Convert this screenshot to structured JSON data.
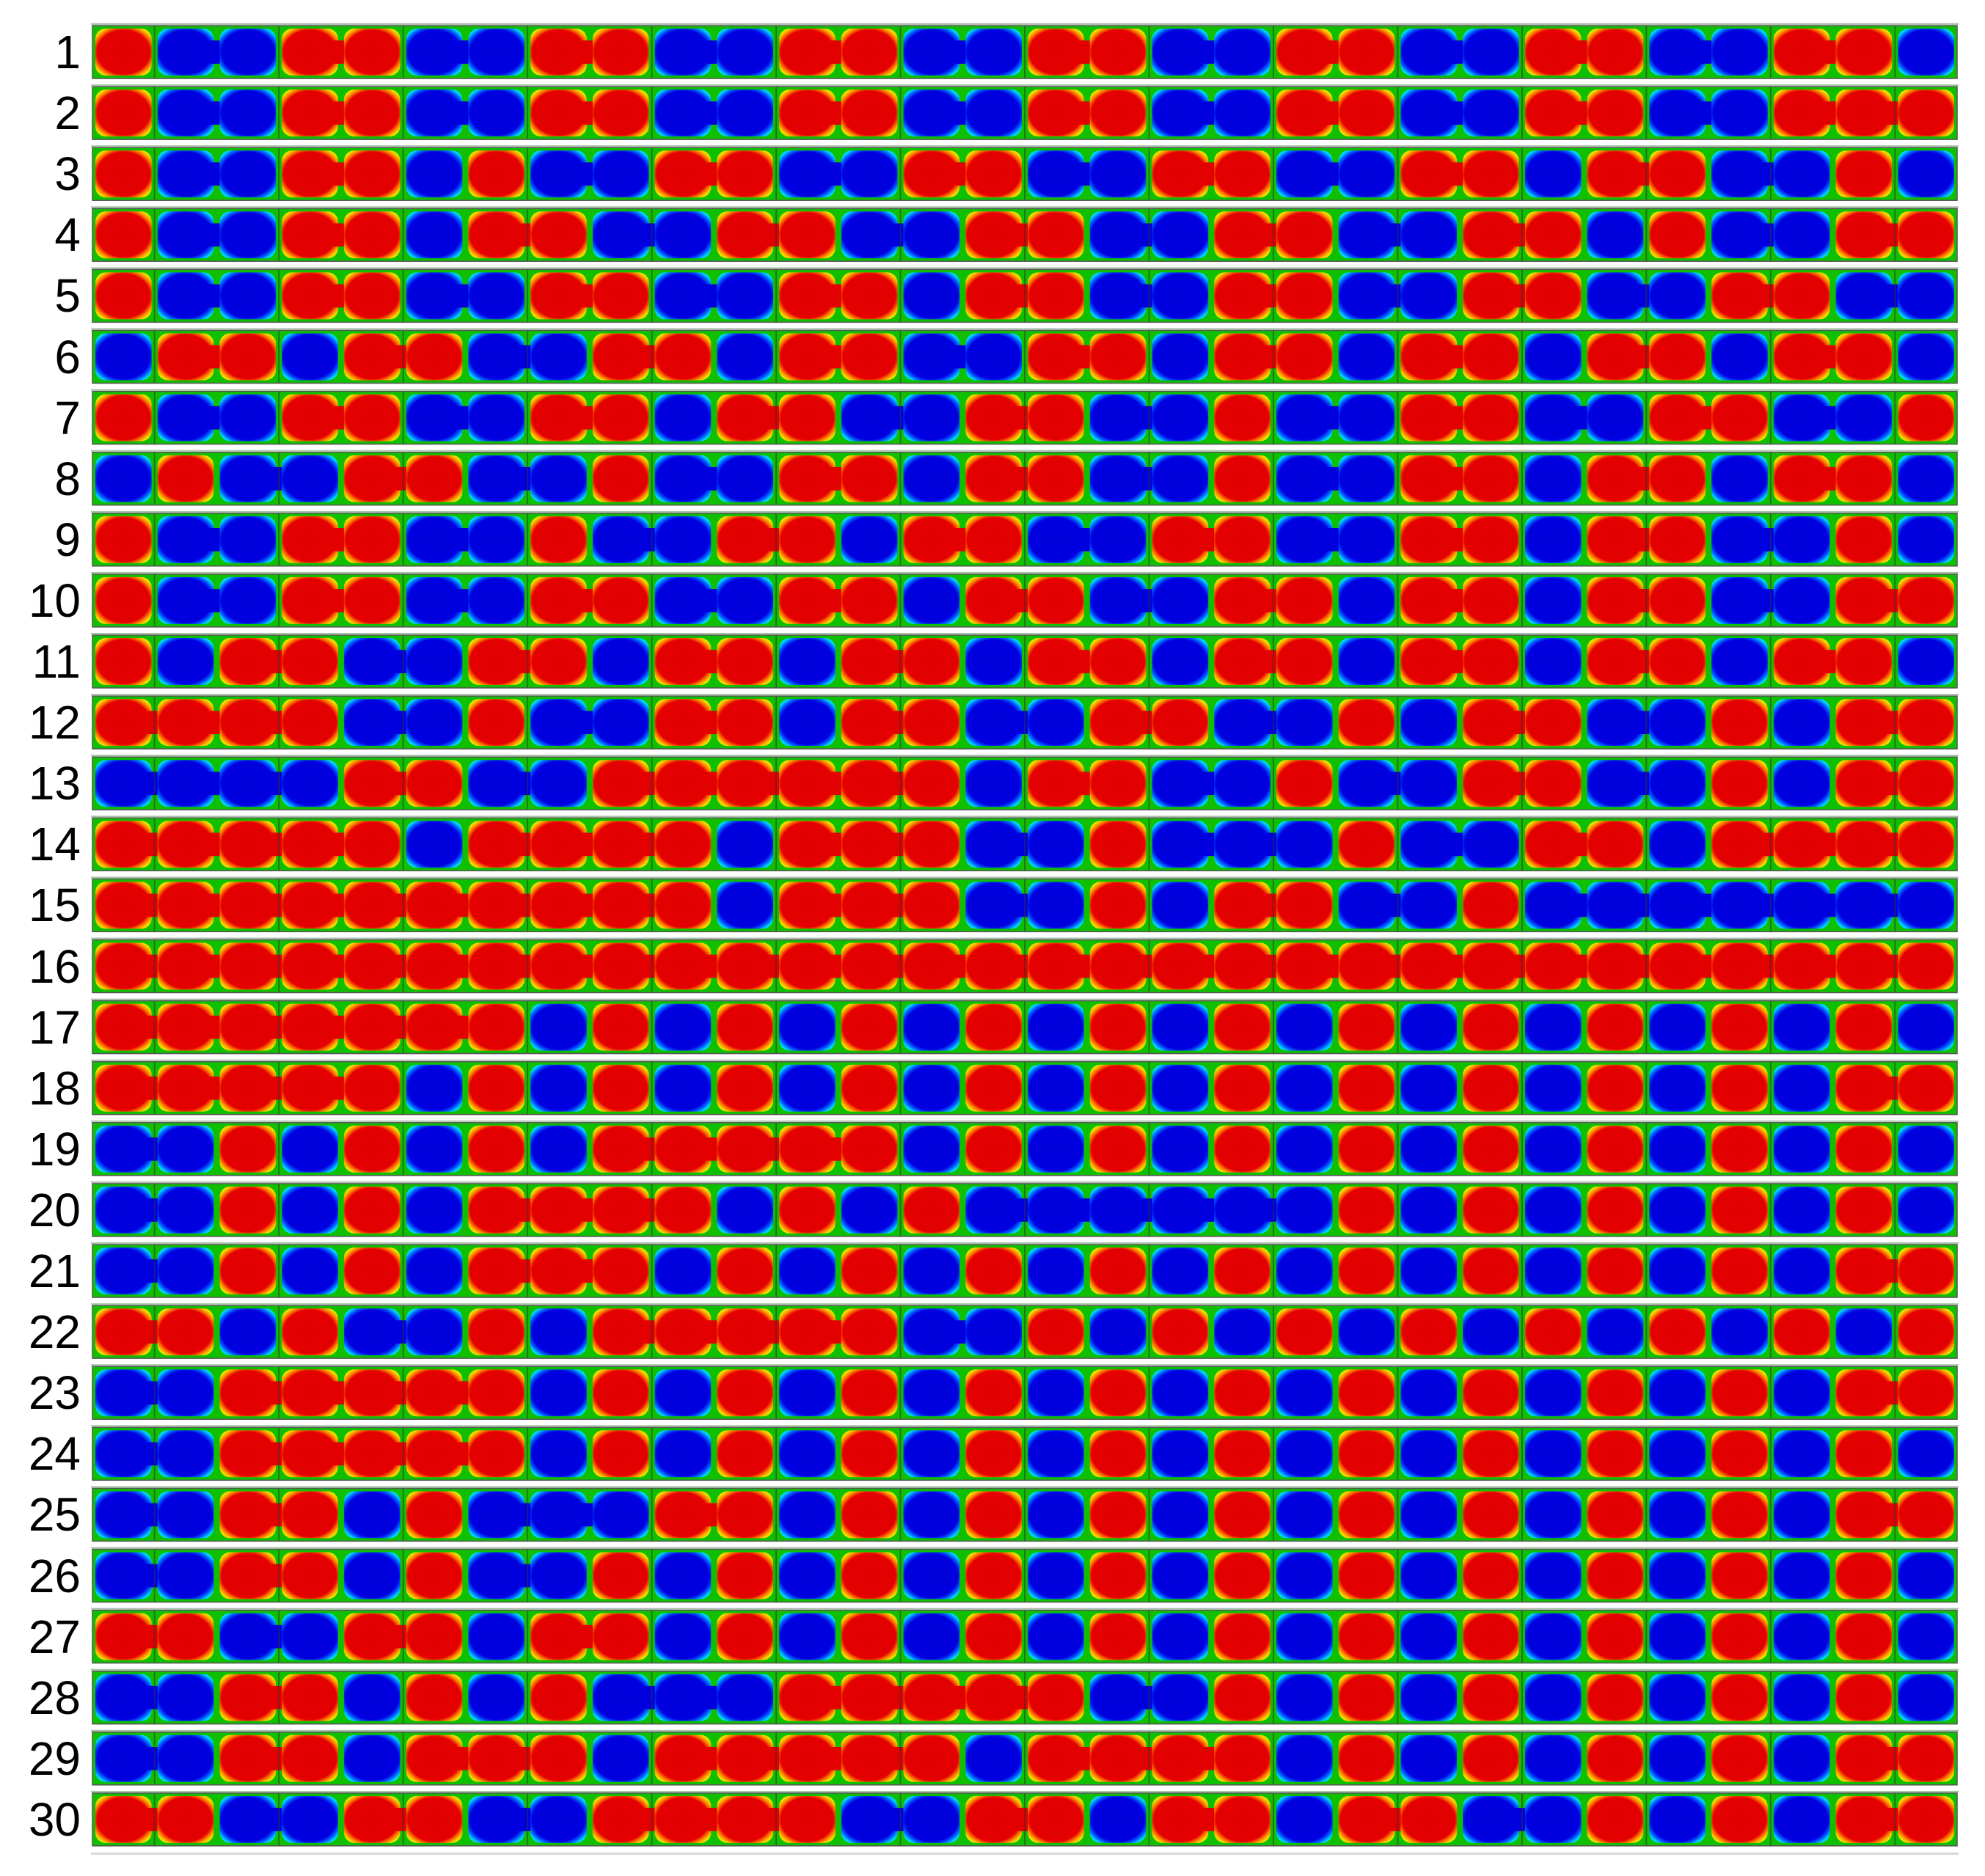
{
  "row_labels": [
    "1",
    "2",
    "3",
    "4",
    "5",
    "6",
    "7",
    "8",
    "9",
    "10",
    "11",
    "12",
    "13",
    "14",
    "15",
    "16",
    "17",
    "18",
    "19",
    "20",
    "21",
    "22",
    "23",
    "24",
    "25",
    "26",
    "27",
    "28",
    "29",
    "30"
  ],
  "palette": {
    "high": "#e00000",
    "low": "#0000e0",
    "mid": "#00e040",
    "cell_border": "#10c000",
    "divider": "#333333",
    "gap": "#f4f4f4",
    "rail": "#a9c0a9"
  },
  "rows": [
    "RBBRRBBRRBBRRBBRRBBRRBBRRBBRRB",
    "RBBRRBBRRBBRRBBRRBBRRBBRRBBRRR",
    "RBBRRBRBBRRBBRRBBRRBBRRBRRBBRB",
    "RBBRRBRRBBRRBBRRBBRRBBRRBRBBRR",
    "RBBRRBBRRBBRRBRRBBRRBBRRBBRRBB",
    "BRRBRRBBRRBRRBBRRBRRBRRBRRBRRB",
    "RBBRRBBRRBRRBBRRBBRBBRRBBRRBBR",
    "BRBBRRBBRBBRRBRRBBRBBRRBRRBRRB",
    "RBBRRBBRBBRRBRRBBRRBBRRBRRBBRB",
    "RBBRRBBRRBBRRBRRBBRRBRRBRRBBRR",
    "RBRRBBRRBRRBRRBRRBRRBRRBRRBRRB",
    "RRRRBBRBBRRBRRBBRRBBRBRRBBRBRR",
    "BBBBRRBBRRRRRRBRRBBRBBRRBBRBRR",
    "RRRRRBRRRRBRRRBBRBBBRBBRRBRRRR",
    "RRRRRRRRRRBRRRBBRBRRBBRBBBBBBB",
    "RRRRRRRRRRRRRRRRRRRRRRRRRRRRRR",
    "RRRRRRRBRBRBRBRBRBRBRBRBRBRBRB",
    "RRRRRBRBRBRBRBRBRBRBRBRBRBRBRR",
    "BBRBRBRBRRRRRBRBRBRBRBRBRBRBRB",
    "BBRBRBRRRRBRBRBBBBBBRBRBRBRBRB",
    "BBRBRBRRRBRBRBRBRBRBRBRBRBRBRR",
    "RRBRBBRBRRRRRBBRBRBRBRBRBRBRBR",
    "BBRRRRRBRBRBRBRBRBRBRBRBRBRBRR",
    "BBRRRRRBRBRBRBRBRBRBRBRBRBRBRB",
    "BBRRBRBBBRRBRBRBRBRBRBRBRBRBRR",
    "BBRRBRBBRBRBRBRBRBRBRBRBRBRBRB",
    "RRBBRRBRRBRBRBRBRBRBRBRBRBRBRB",
    "BBRRBRBRBBBRRRRRBBRBRBRBRBRBRB",
    "BBRRBRRRBRRRRRBRRRRBRBRBRBRBRR",
    "RRBBRRBBRRRRBBRRBRRBRRBBRBRBRR"
  ]
}
